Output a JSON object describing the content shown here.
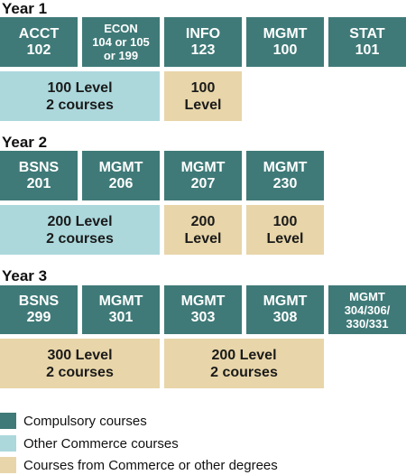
{
  "years": [
    {
      "label": "Year 1",
      "compulsory": [
        "ACCT\n102",
        "ECON\n104 or 105\nor 199",
        "INFO\n123",
        "MGMT\n100",
        "STAT\n101"
      ],
      "slots": [
        {
          "text": "100 Level\n2 courses",
          "type": "other"
        },
        {
          "text": "100\nLevel",
          "type": "free"
        }
      ]
    },
    {
      "label": "Year 2",
      "compulsory": [
        "BSNS\n201",
        "MGMT\n206",
        "MGMT\n207",
        "MGMT\n230"
      ],
      "slots": [
        {
          "text": "200 Level\n2 courses",
          "type": "other"
        },
        {
          "text": "200\nLevel",
          "type": "free"
        },
        {
          "text": "100\nLevel",
          "type": "free"
        }
      ]
    },
    {
      "label": "Year 3",
      "compulsory": [
        "BSNS\n299",
        "MGMT\n301",
        "MGMT\n303",
        "MGMT\n308",
        "MGMT\n304/306/\n330/331"
      ],
      "slots": [
        {
          "text": "300 Level\n2 courses",
          "type": "free"
        },
        {
          "text": "200 Level\n2 courses",
          "type": "free"
        }
      ]
    }
  ],
  "legend": [
    {
      "label": "Compulsory courses",
      "color": "#3f7a78"
    },
    {
      "label": "Other Commerce courses",
      "color": "#acd8dc"
    },
    {
      "label": "Courses from Commerce or other degrees",
      "color": "#e8d5a9"
    }
  ]
}
